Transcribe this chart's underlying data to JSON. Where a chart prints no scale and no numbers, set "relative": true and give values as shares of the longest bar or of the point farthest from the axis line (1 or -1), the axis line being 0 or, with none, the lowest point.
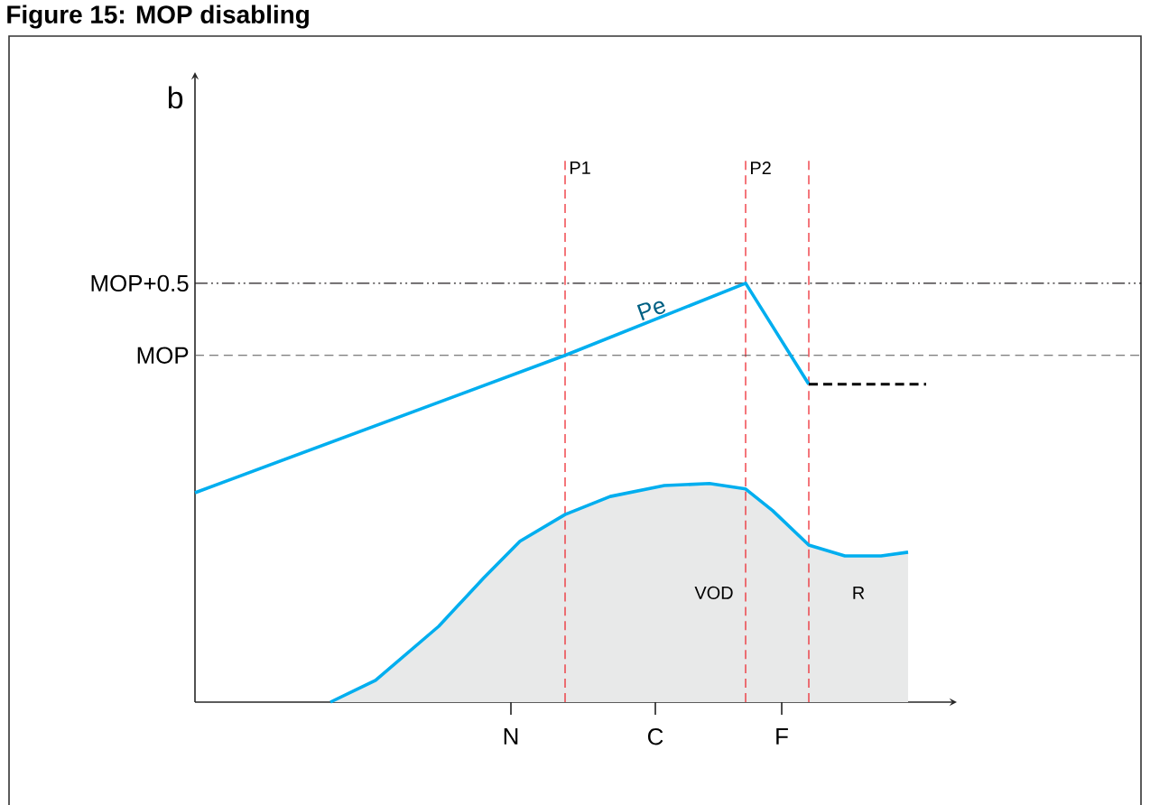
{
  "chart_data": {
    "type": "line",
    "title": "Figure 15: MOP disabling",
    "relative": true,
    "tick_labels": "x",
    "categories": [
      null,
      null,
      null,
      null,
      null,
      null,
      null,
      null,
      null,
      null,
      null,
      null,
      null,
      null,
      null,
      null,
      null,
      null,
      null,
      null,
      null,
      null,
      null,
      null,
      null,
      null,
      null,
      null,
      null,
      null,
      null,
      null,
      null,
      null,
      null,
      "N",
      null,
      null,
      null,
      null,
      null,
      null,
      null,
      null,
      null,
      null,
      null,
      null,
      null,
      null,
      null,
      "C",
      null,
      null,
      null,
      null,
      null,
      null,
      null,
      null,
      null,
      null,
      null,
      null,
      null,
      "F",
      null,
      null,
      null,
      null,
      null,
      null,
      null,
      null,
      null,
      null,
      null,
      null,
      null,
      null,
      null,
      null,
      null,
      null,
      null
    ],
    "series": [
      {
        "type": "area",
        "color": "#00aeef",
        "values": [
          null,
          null,
          null,
          null,
          null,
          null,
          null,
          null,
          null,
          null,
          null,
          null,
          null,
          null,
          null,
          0,
          null,
          null,
          null,
          null,
          0.052,
          null,
          null,
          null,
          null,
          null,
          null,
          0.181,
          null,
          null,
          null,
          null,
          0.297,
          null,
          null,
          null,
          0.384,
          null,
          null,
          null,
          null,
          0.448,
          null,
          null,
          null,
          null,
          0.491,
          null,
          null,
          null,
          null,
          null,
          0.517,
          null,
          null,
          null,
          null,
          0.522,
          null,
          null,
          null,
          0.509,
          null,
          null,
          0.457,
          null,
          null,
          null,
          0.375,
          null,
          null,
          null,
          0.349,
          null,
          null,
          null,
          0.349,
          null,
          null,
          0.358,
          null,
          null,
          null,
          null,
          null
        ]
      },
      {
        "name": "Pe",
        "color": "#00aeef",
        "values": [
          0.5,
          null,
          null,
          null,
          null,
          null,
          null,
          null,
          null,
          null,
          null,
          null,
          null,
          null,
          null,
          null,
          null,
          null,
          null,
          null,
          null,
          null,
          null,
          null,
          null,
          null,
          null,
          null,
          null,
          null,
          null,
          null,
          null,
          null,
          null,
          null,
          null,
          null,
          null,
          null,
          null,
          0.828,
          null,
          null,
          null,
          null,
          null,
          null,
          null,
          null,
          null,
          null,
          null,
          null,
          null,
          null,
          null,
          null,
          null,
          null,
          null,
          1.0,
          null,
          null,
          null,
          null,
          null,
          null,
          0.759,
          null,
          null,
          null,
          null,
          null,
          null,
          null,
          null,
          null,
          null,
          null,
          null,
          null,
          null,
          null,
          null
        ]
      },
      {
        "color": "#000000",
        "line_style": "dashed",
        "values": [
          null,
          null,
          null,
          null,
          null,
          null,
          null,
          null,
          null,
          null,
          null,
          null,
          null,
          null,
          null,
          null,
          null,
          null,
          null,
          null,
          null,
          null,
          null,
          null,
          null,
          null,
          null,
          null,
          null,
          null,
          null,
          null,
          null,
          null,
          null,
          null,
          null,
          null,
          null,
          null,
          null,
          null,
          null,
          null,
          null,
          null,
          null,
          null,
          null,
          null,
          null,
          null,
          null,
          null,
          null,
          null,
          null,
          null,
          null,
          null,
          null,
          null,
          null,
          null,
          null,
          null,
          null,
          null,
          0.759,
          null,
          null,
          null,
          null,
          null,
          null,
          null,
          null,
          null,
          null,
          null,
          null,
          0.759,
          null,
          null,
          null
        ]
      }
    ],
    "ref_lines": [
      {
        "axis": "y",
        "value": 1.0,
        "label": "MOP+0.5",
        "color": "#231f20",
        "line_style": "dashdot"
      },
      {
        "axis": "y",
        "value": 0.828,
        "label": "MOP",
        "color": "#555555",
        "line_style": "dashed"
      }
    ],
    "annotations": [
      "b",
      "P1",
      "P2",
      "VOD",
      "R"
    ]
  }
}
